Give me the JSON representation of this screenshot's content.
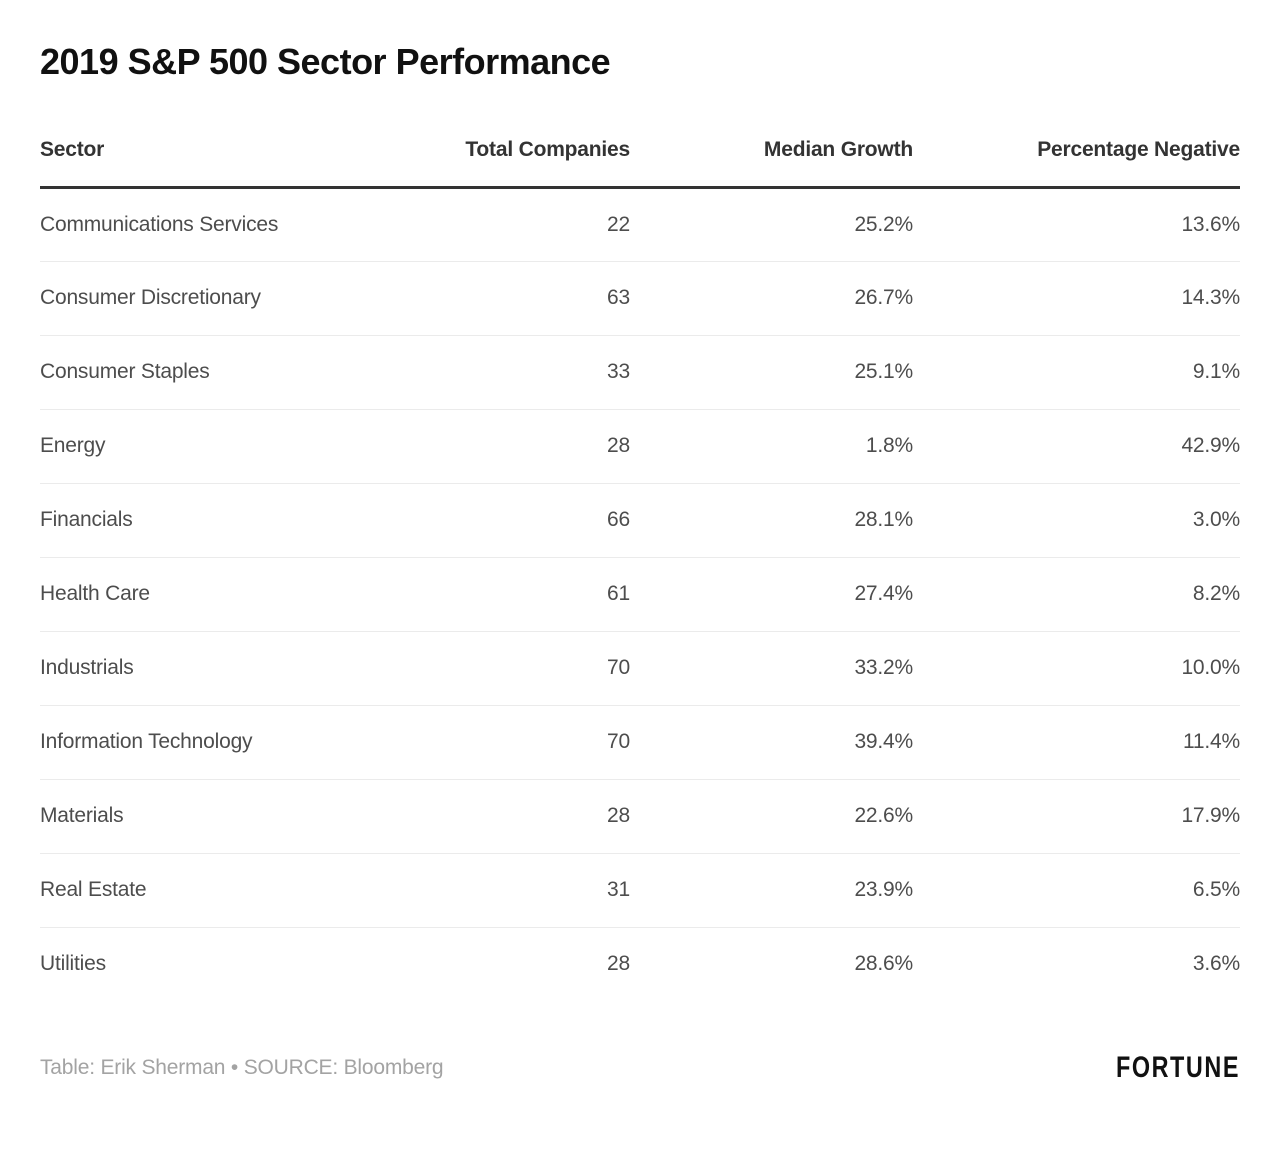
{
  "title": "2019 S&P 500 Sector Performance",
  "table": {
    "columns": [
      "Sector",
      "Total Companies",
      "Median Growth",
      "Percentage Negative"
    ],
    "rows": [
      {
        "sector": "Communications Services",
        "total": "22",
        "growth": "25.2%",
        "negative": "13.6%"
      },
      {
        "sector": "Consumer Discretionary",
        "total": "63",
        "growth": "26.7%",
        "negative": "14.3%"
      },
      {
        "sector": "Consumer Staples",
        "total": "33",
        "growth": "25.1%",
        "negative": "9.1%"
      },
      {
        "sector": "Energy",
        "total": "28",
        "growth": "1.8%",
        "negative": "42.9%"
      },
      {
        "sector": "Financials",
        "total": "66",
        "growth": "28.1%",
        "negative": "3.0%"
      },
      {
        "sector": "Health Care",
        "total": "61",
        "growth": "27.4%",
        "negative": "8.2%"
      },
      {
        "sector": "Industrials",
        "total": "70",
        "growth": "33.2%",
        "negative": "10.0%"
      },
      {
        "sector": "Information Technology",
        "total": "70",
        "growth": "39.4%",
        "negative": "11.4%"
      },
      {
        "sector": "Materials",
        "total": "28",
        "growth": "22.6%",
        "negative": "17.9%"
      },
      {
        "sector": "Real Estate",
        "total": "31",
        "growth": "23.9%",
        "negative": "6.5%"
      },
      {
        "sector": "Utilities",
        "total": "28",
        "growth": "28.6%",
        "negative": "3.6%"
      }
    ]
  },
  "footer": {
    "credit": "Table: Erik Sherman • SOURCE: Bloomberg",
    "logo": "FORTUNE"
  },
  "colors": {
    "title_text": "#111111",
    "header_text": "#333333",
    "header_rule": "#333333",
    "row_text": "#4d4d4d",
    "row_divider": "#ebebeb",
    "footer_text": "#a3a3a3",
    "background": "#ffffff"
  },
  "chart_data": {
    "type": "table",
    "title": "2019 S&P 500 Sector Performance",
    "columns": [
      "Sector",
      "Total Companies",
      "Median Growth",
      "Percentage Negative"
    ],
    "rows": [
      [
        "Communications Services",
        22,
        25.2,
        13.6
      ],
      [
        "Consumer Discretionary",
        63,
        26.7,
        14.3
      ],
      [
        "Consumer Staples",
        33,
        25.1,
        9.1
      ],
      [
        "Energy",
        28,
        1.8,
        42.9
      ],
      [
        "Financials",
        66,
        28.1,
        3.0
      ],
      [
        "Health Care",
        61,
        27.4,
        8.2
      ],
      [
        "Industrials",
        70,
        33.2,
        10.0
      ],
      [
        "Information Technology",
        70,
        39.4,
        11.4
      ],
      [
        "Materials",
        28,
        22.6,
        17.9
      ],
      [
        "Real Estate",
        31,
        23.9,
        6.5
      ],
      [
        "Utilities",
        28,
        28.6,
        3.6
      ]
    ],
    "units": {
      "Median Growth": "%",
      "Percentage Negative": "%"
    },
    "source": "Bloomberg",
    "credit": "Table: Erik Sherman"
  }
}
